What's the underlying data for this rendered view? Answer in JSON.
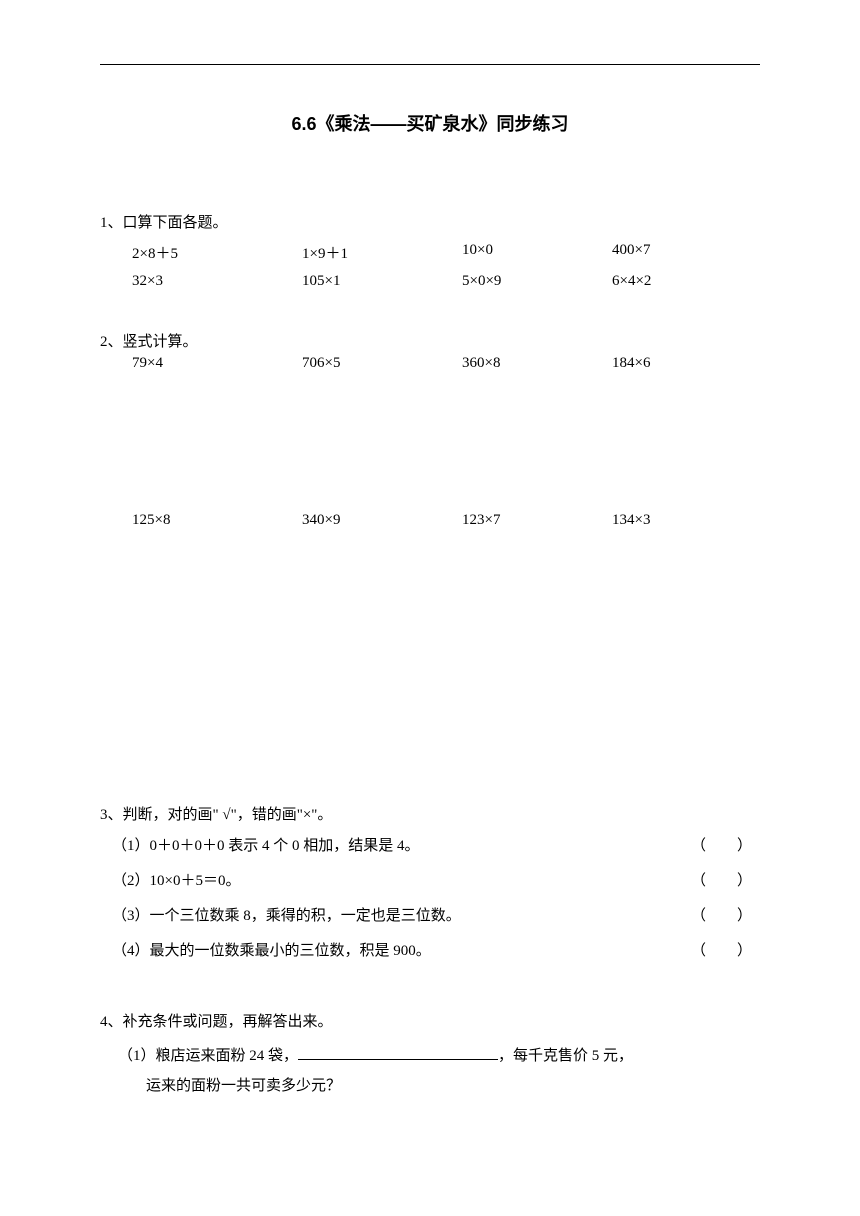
{
  "title": "6.6《乘法——买矿泉水》同步练习",
  "section1": {
    "header": "1、口算下面各题。",
    "row1": [
      "2×8＋5",
      "1×9＋1",
      "10×0",
      "400×7"
    ],
    "row2": [
      "32×3",
      "105×1",
      "5×0×9",
      "6×4×2"
    ]
  },
  "section2": {
    "header": "2、竖式计算。",
    "row1": [
      "79×4",
      "706×5",
      "360×8",
      "184×6"
    ],
    "row2": [
      "125×8",
      "340×9",
      "123×7",
      "134×3"
    ]
  },
  "section3": {
    "header": "3、判断，对的画\" √\"，错的画\"×\"。",
    "items": [
      "（1）0＋0＋0＋0 表示 4 个 0 相加，结果是 4。",
      "（2）10×0＋5＝0。",
      "（3）一个三位数乘 8，乘得的积，一定也是三位数。",
      "（4）最大的一位数乘最小的三位数，积是 900。"
    ],
    "paren": "（　）"
  },
  "section4": {
    "header": "4、补充条件或问题，再解答出来。",
    "problem1_part1": "（1）粮店运来面粉 24 袋，",
    "problem1_part2": "，每千克售价 5 元，",
    "problem1_line2": "运来的面粉一共可卖多少元？"
  },
  "colors": {
    "text": "#000000",
    "background": "#ffffff"
  },
  "fonts": {
    "body_size": 15,
    "title_size": 18
  }
}
